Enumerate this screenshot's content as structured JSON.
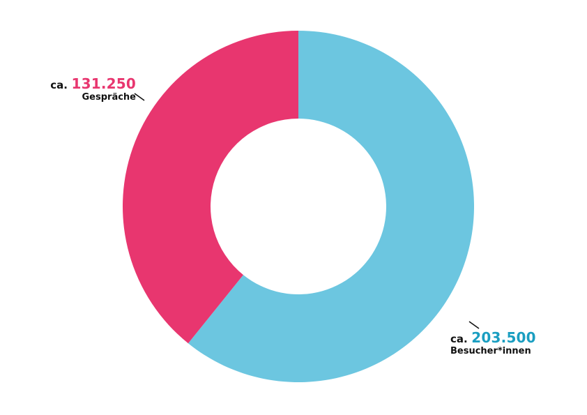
{
  "chart_data": {
    "type": "pie",
    "variant": "donut",
    "categories": [
      "Gespräche",
      "Besucher*innen"
    ],
    "values": [
      131250,
      203500
    ],
    "colors": [
      "#e8366f",
      "#6cc6e0"
    ],
    "labels": [
      {
        "prefix": "ca.",
        "value_text": "131.250",
        "category": "Gespräche",
        "value_color": "#e8366f"
      },
      {
        "prefix": "ca.",
        "value_text": "203.500",
        "category": "Besucher*innen",
        "value_color": "#1a9ec1"
      }
    ]
  }
}
